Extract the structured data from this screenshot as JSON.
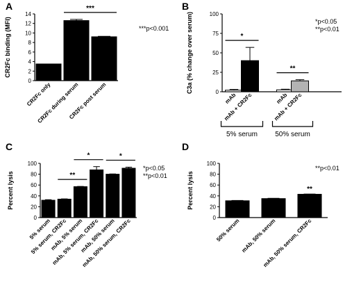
{
  "chart_data": [
    {
      "panel": "A",
      "type": "bar",
      "ylabel": "CR2Fc binding (MFI)",
      "ylim": [
        0,
        14
      ],
      "yticks": [
        0,
        2,
        4,
        6,
        8,
        10,
        12,
        14
      ],
      "categories": [
        "CR2Fc only",
        "CR2Fc during serum",
        "CR2Fc post serum"
      ],
      "values": [
        3.5,
        12.6,
        9.2
      ],
      "errors": [
        0,
        0.25,
        0.1
      ],
      "colors": [
        "#000000",
        "#000000",
        "#000000"
      ],
      "comparisons": [
        {
          "from": 1,
          "to": 2,
          "label": "***"
        }
      ],
      "note_lines": [
        "***p<0.001"
      ]
    },
    {
      "panel": "B",
      "type": "bar",
      "ylabel": "C3a (% change over serum)",
      "ylim": [
        0,
        100
      ],
      "yticks": [
        0,
        25,
        50,
        75,
        100
      ],
      "categories": [
        "mAb",
        "mAb + CR2Fc",
        "mAb",
        "mAb + CR2Fc"
      ],
      "values": [
        2,
        40,
        2.5,
        14
      ],
      "errors": [
        1,
        17,
        0.8,
        1.5
      ],
      "colors": [
        "#ffffff",
        "#000000",
        "#ffffff",
        "#b3b3b3"
      ],
      "comparisons": [
        {
          "from": 0,
          "to": 1,
          "label": "*"
        },
        {
          "from": 2,
          "to": 3,
          "label": "**"
        }
      ],
      "groups": [
        {
          "label": "5% serum",
          "from": 0,
          "to": 1
        },
        {
          "label": "50% serum",
          "from": 2,
          "to": 3
        }
      ],
      "note_lines": [
        "*p<0.05",
        "**p<0.01"
      ]
    },
    {
      "panel": "C",
      "type": "bar",
      "ylabel": "Percent lysis",
      "ylim": [
        0,
        100
      ],
      "yticks": [
        0,
        20,
        40,
        60,
        80,
        100
      ],
      "categories": [
        "5% serum",
        "5% serum, CR2Fc",
        "mAb, 5% serum",
        "mAb, 5% serum, CR2Fc",
        "mAb, 50% serum",
        "mAb, 50% serum, CR2Fc"
      ],
      "values": [
        32,
        34,
        57,
        88,
        80,
        91
      ],
      "errors": [
        1,
        0.5,
        0.5,
        6,
        0.5,
        2
      ],
      "colors": [
        "#000000",
        "#000000",
        "#000000",
        "#000000",
        "#000000",
        "#000000"
      ],
      "comparisons": [
        {
          "from": 1,
          "to": 2,
          "label": "**"
        },
        {
          "from": 2,
          "to": 3,
          "label": "*"
        },
        {
          "from": 4,
          "to": 5,
          "label": "*"
        }
      ],
      "note_lines": [
        "*p<0.05",
        "**p<0.01"
      ]
    },
    {
      "panel": "D",
      "type": "bar",
      "ylabel": "Percent lysis",
      "ylim": [
        0,
        100
      ],
      "yticks": [
        0,
        20,
        40,
        60,
        80,
        100
      ],
      "categories": [
        "50% serum",
        "mAb, 50% serum",
        "mAb, 50% serum, CR2Fc"
      ],
      "values": [
        31,
        35,
        43
      ],
      "errors": [
        0.5,
        0.5,
        0.5
      ],
      "colors": [
        "#000000",
        "#000000",
        "#000000"
      ],
      "comparisons": [],
      "bar_marks": [
        {
          "index": 2,
          "label": "**"
        }
      ],
      "note_lines": [
        "**p<0.01"
      ]
    }
  ]
}
